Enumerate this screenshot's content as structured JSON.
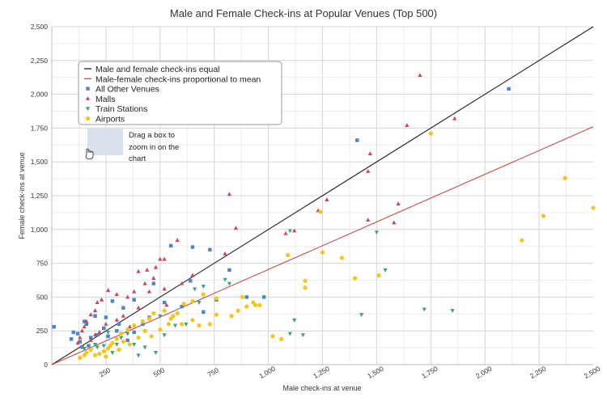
{
  "chart_data": {
    "type": "scatter",
    "title": "Male and Female Check-ins at Popular Venues (Top 500)",
    "xlabel": "Male check-ins at venue",
    "ylabel": "Female check-ins at venue",
    "xlim": [
      0,
      2500
    ],
    "ylim": [
      0,
      2500
    ],
    "xticks": [
      "250",
      "500",
      "750",
      "1,000",
      "1,250",
      "1,500",
      "1,750",
      "2,000",
      "2,250",
      "2,500"
    ],
    "yticks": [
      "0",
      "250",
      "500",
      "750",
      "1,000",
      "1,250",
      "1,500",
      "1,750",
      "2,000",
      "2,250",
      "2,500"
    ],
    "grid": true,
    "legend_position": "top-left",
    "lines": [
      {
        "name": "Male and female check-ins equal",
        "color": "#222222",
        "x": [
          0,
          2500
        ],
        "y": [
          0,
          2500
        ]
      },
      {
        "name": "Male-female check-ins proportional to mean",
        "color": "#c0504d",
        "x": [
          0,
          2500
        ],
        "y": [
          0,
          1760
        ]
      }
    ],
    "series": [
      {
        "name": "All Other Venues",
        "marker": "square",
        "color": "#4a86c5",
        "points": [
          [
            10,
            280
          ],
          [
            2110,
            2040
          ],
          [
            1410,
            1660
          ],
          [
            730,
            850
          ],
          [
            550,
            880
          ],
          [
            650,
            870
          ],
          [
            470,
            600
          ],
          [
            640,
            620
          ],
          [
            820,
            700
          ],
          [
            900,
            500
          ],
          [
            980,
            500
          ],
          [
            760,
            480
          ],
          [
            330,
            420
          ],
          [
            250,
            350
          ],
          [
            520,
            460
          ],
          [
            600,
            430
          ],
          [
            700,
            390
          ],
          [
            380,
            480
          ],
          [
            280,
            470
          ],
          [
            240,
            270
          ],
          [
            200,
            360
          ],
          [
            300,
            250
          ],
          [
            150,
            320
          ],
          [
            120,
            230
          ],
          [
            100,
            240
          ],
          [
            180,
            200
          ],
          [
            90,
            190
          ],
          [
            130,
            170
          ],
          [
            160,
            300
          ],
          [
            210,
            220
          ],
          [
            260,
            210
          ],
          [
            310,
            300
          ],
          [
            350,
            180
          ],
          [
            420,
            300
          ],
          [
            450,
            350
          ],
          [
            380,
            240
          ],
          [
            170,
            140
          ],
          [
            140,
            130
          ]
        ]
      },
      {
        "name": "Malls",
        "marker": "triangle-up",
        "color": "#d0435c",
        "points": [
          [
            1700,
            2140
          ],
          [
            1860,
            1820
          ],
          [
            1640,
            1770
          ],
          [
            1470,
            1560
          ],
          [
            1460,
            1430
          ],
          [
            1270,
            1220
          ],
          [
            1230,
            1140
          ],
          [
            1600,
            1190
          ],
          [
            1460,
            1070
          ],
          [
            1580,
            1050
          ],
          [
            1120,
            990
          ],
          [
            1080,
            970
          ],
          [
            820,
            1260
          ],
          [
            850,
            1010
          ],
          [
            800,
            820
          ],
          [
            580,
            920
          ],
          [
            520,
            780
          ],
          [
            500,
            780
          ],
          [
            480,
            720
          ],
          [
            470,
            640
          ],
          [
            440,
            700
          ],
          [
            400,
            690
          ],
          [
            520,
            560
          ],
          [
            530,
            440
          ],
          [
            450,
            540
          ],
          [
            430,
            600
          ],
          [
            380,
            540
          ],
          [
            350,
            500
          ],
          [
            300,
            520
          ],
          [
            260,
            550
          ],
          [
            230,
            480
          ],
          [
            210,
            460
          ],
          [
            200,
            400
          ],
          [
            180,
            370
          ],
          [
            160,
            320
          ],
          [
            150,
            280
          ],
          [
            140,
            250
          ],
          [
            130,
            200
          ],
          [
            120,
            160
          ],
          [
            330,
            360
          ],
          [
            400,
            420
          ],
          [
            360,
            280
          ],
          [
            300,
            330
          ],
          [
            250,
            300
          ],
          [
            220,
            240
          ],
          [
            200,
            220
          ],
          [
            180,
            180
          ],
          [
            650,
            660
          ],
          [
            600,
            600
          ]
        ]
      },
      {
        "name": "Train Stations",
        "marker": "triangle-down",
        "color": "#3fa27c",
        "points": [
          [
            1850,
            400
          ],
          [
            1720,
            410
          ],
          [
            1430,
            370
          ],
          [
            1500,
            980
          ],
          [
            1100,
            990
          ],
          [
            1120,
            330
          ],
          [
            1160,
            220
          ],
          [
            1100,
            230
          ],
          [
            800,
            630
          ],
          [
            820,
            600
          ],
          [
            700,
            580
          ],
          [
            660,
            560
          ],
          [
            680,
            460
          ],
          [
            520,
            220
          ],
          [
            480,
            90
          ],
          [
            430,
            130
          ],
          [
            400,
            70
          ],
          [
            380,
            150
          ],
          [
            280,
            90
          ],
          [
            300,
            150
          ],
          [
            240,
            140
          ],
          [
            200,
            150
          ],
          [
            180,
            110
          ],
          [
            210,
            130
          ],
          [
            320,
            200
          ],
          [
            350,
            230
          ],
          [
            260,
            240
          ],
          [
            150,
            120
          ],
          [
            570,
            290
          ],
          [
            620,
            300
          ],
          [
            500,
            360
          ],
          [
            1540,
            700
          ]
        ]
      },
      {
        "name": "Airports",
        "marker": "circle",
        "color": "#f5c518",
        "points": [
          [
            2500,
            1160
          ],
          [
            2370,
            1380
          ],
          [
            2270,
            1100
          ],
          [
            2170,
            920
          ],
          [
            1750,
            1710
          ],
          [
            1240,
            1130
          ],
          [
            1250,
            830
          ],
          [
            1340,
            790
          ],
          [
            1400,
            640
          ],
          [
            1510,
            660
          ],
          [
            1170,
            620
          ],
          [
            1170,
            570
          ],
          [
            1090,
            810
          ],
          [
            1020,
            210
          ],
          [
            1060,
            190
          ],
          [
            930,
            460
          ],
          [
            940,
            440
          ],
          [
            960,
            440
          ],
          [
            880,
            500
          ],
          [
            900,
            430
          ],
          [
            860,
            400
          ],
          [
            830,
            360
          ],
          [
            760,
            490
          ],
          [
            760,
            370
          ],
          [
            730,
            300
          ],
          [
            650,
            330
          ],
          [
            600,
            300
          ],
          [
            560,
            360
          ],
          [
            520,
            400
          ],
          [
            470,
            380
          ],
          [
            450,
            340
          ],
          [
            420,
            320
          ],
          [
            380,
            290
          ],
          [
            350,
            260
          ],
          [
            320,
            230
          ],
          [
            300,
            190
          ],
          [
            280,
            160
          ],
          [
            260,
            120
          ],
          [
            240,
            100
          ],
          [
            220,
            80
          ],
          [
            200,
            70
          ],
          [
            180,
            110
          ],
          [
            160,
            90
          ],
          [
            150,
            70
          ],
          [
            130,
            50
          ],
          [
            250,
            60
          ],
          [
            270,
            140
          ],
          [
            310,
            110
          ],
          [
            330,
            170
          ],
          [
            360,
            150
          ],
          [
            400,
            200
          ],
          [
            430,
            250
          ],
          [
            460,
            210
          ],
          [
            500,
            260
          ],
          [
            540,
            300
          ],
          [
            550,
            340
          ],
          [
            580,
            380
          ],
          [
            610,
            450
          ],
          [
            650,
            470
          ],
          [
            700,
            520
          ],
          [
            680,
            290
          ]
        ]
      }
    ],
    "annotation": "Drag a box to zoom in on the chart"
  }
}
